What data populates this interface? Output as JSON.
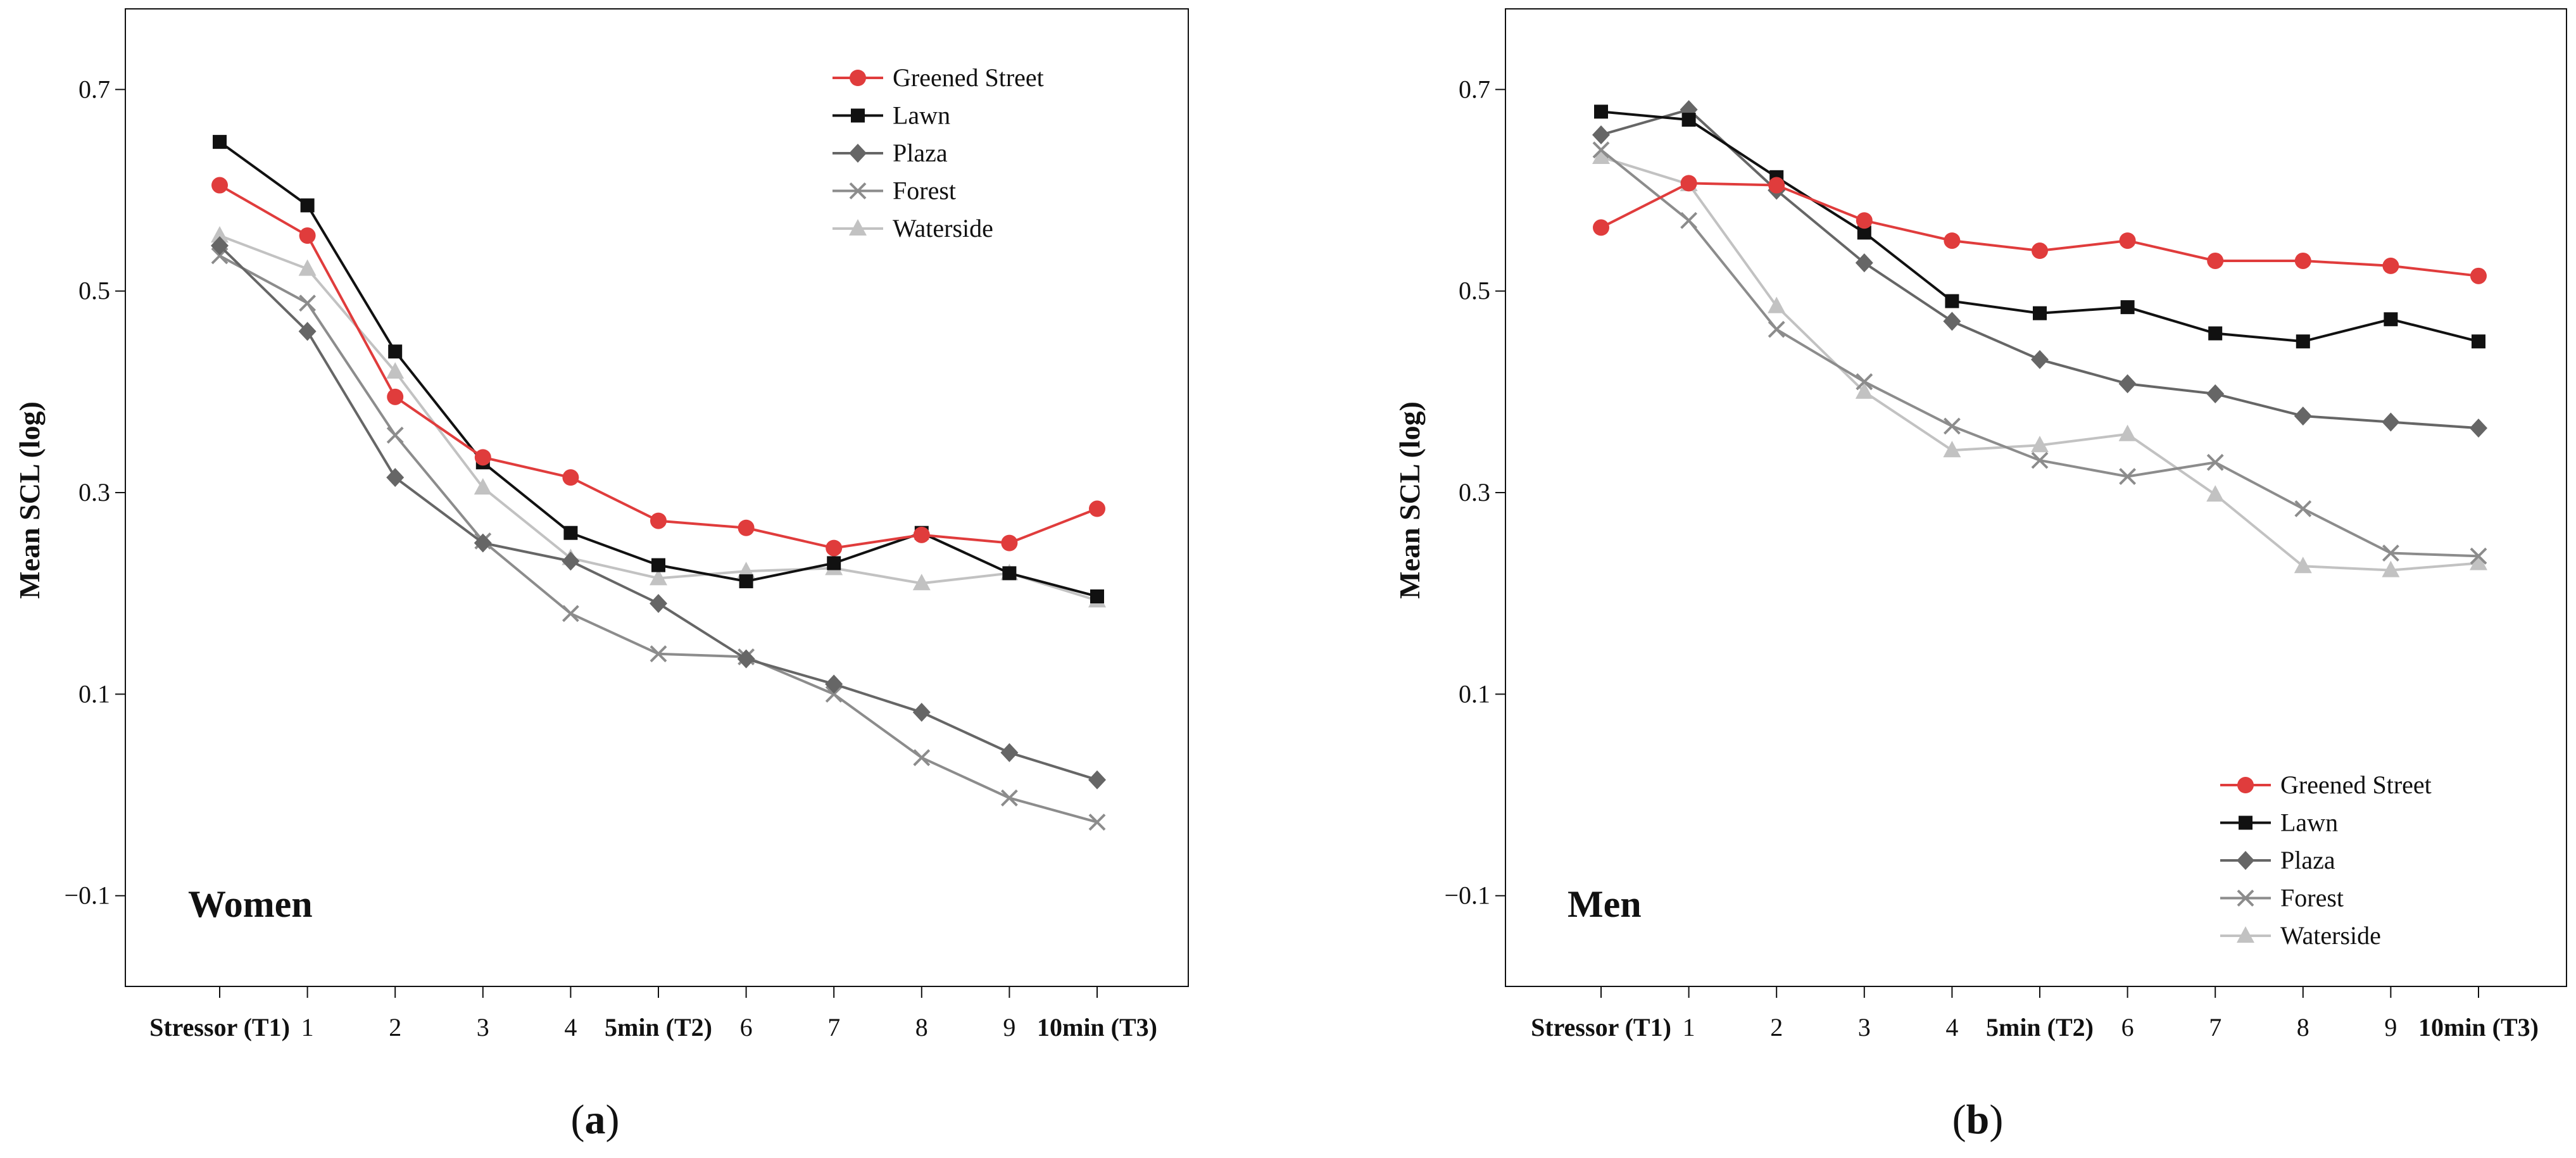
{
  "chart_data": [
    {
      "type": "line",
      "panel": "a",
      "caption_label": "a",
      "panel_label": "Women",
      "ylabel": "Mean SCL (log)",
      "xlabel": "",
      "ylim": [
        -0.19,
        0.78
      ],
      "yticks": [
        -0.1,
        0.1,
        0.3,
        0.5,
        0.7
      ],
      "ytick_labels": [
        "−0.1",
        "0.1",
        "0.3",
        "0.5",
        "0.7"
      ],
      "x": [
        0,
        1,
        2,
        3,
        4,
        5,
        6,
        7,
        8,
        9,
        10
      ],
      "xtick_labels": [
        "Stressor (T1)",
        "1",
        "2",
        "3",
        "4",
        "5min (T2)",
        "6",
        "7",
        "8",
        "9",
        "10min (T3)"
      ],
      "bold_xticks": [
        0,
        5,
        10
      ],
      "legend_position": "top-right",
      "series": [
        {
          "name": "Greened Street",
          "color": "#e03c3c",
          "marker": "circle",
          "values": [
            0.605,
            0.555,
            0.395,
            0.335,
            0.315,
            0.272,
            0.265,
            0.245,
            0.258,
            0.25,
            0.284
          ]
        },
        {
          "name": "Lawn",
          "color": "#111111",
          "marker": "square",
          "values": [
            0.648,
            0.585,
            0.44,
            0.33,
            0.26,
            0.228,
            0.212,
            0.23,
            0.26,
            0.22,
            0.197
          ]
        },
        {
          "name": "Plaza",
          "color": "#666666",
          "marker": "diamond",
          "values": [
            0.545,
            0.46,
            0.315,
            0.25,
            0.232,
            0.19,
            0.135,
            0.11,
            0.082,
            0.042,
            0.015
          ]
        },
        {
          "name": "Forest",
          "color": "#8c8c8c",
          "marker": "x",
          "values": [
            0.535,
            0.488,
            0.357,
            0.252,
            0.18,
            0.14,
            0.137,
            0.1,
            0.037,
            -0.003,
            -0.027
          ]
        },
        {
          "name": "Waterside",
          "color": "#c2c2c2",
          "marker": "triangle",
          "values": [
            0.555,
            0.522,
            0.42,
            0.305,
            0.235,
            0.215,
            0.222,
            0.225,
            0.21,
            0.22,
            0.193
          ]
        }
      ]
    },
    {
      "type": "line",
      "panel": "b",
      "caption_label": "b",
      "panel_label": "Men",
      "ylabel": "Mean SCL (log)",
      "xlabel": "",
      "ylim": [
        -0.19,
        0.78
      ],
      "yticks": [
        -0.1,
        0.1,
        0.3,
        0.5,
        0.7
      ],
      "ytick_labels": [
        "−0.1",
        "0.1",
        "0.3",
        "0.5",
        "0.7"
      ],
      "x": [
        0,
        1,
        2,
        3,
        4,
        5,
        6,
        7,
        8,
        9,
        10
      ],
      "xtick_labels": [
        "Stressor (T1)",
        "1",
        "2",
        "3",
        "4",
        "5min (T2)",
        "6",
        "7",
        "8",
        "9",
        "10min (T3)"
      ],
      "bold_xticks": [
        0,
        5,
        10
      ],
      "legend_position": "bottom-right",
      "series": [
        {
          "name": "Greened Street",
          "color": "#e03c3c",
          "marker": "circle",
          "values": [
            0.563,
            0.607,
            0.605,
            0.57,
            0.55,
            0.54,
            0.55,
            0.53,
            0.53,
            0.525,
            0.515
          ]
        },
        {
          "name": "Lawn",
          "color": "#111111",
          "marker": "square",
          "values": [
            0.678,
            0.67,
            0.613,
            0.558,
            0.49,
            0.478,
            0.484,
            0.458,
            0.45,
            0.472,
            0.45
          ]
        },
        {
          "name": "Plaza",
          "color": "#666666",
          "marker": "diamond",
          "values": [
            0.655,
            0.68,
            0.6,
            0.528,
            0.47,
            0.432,
            0.408,
            0.398,
            0.376,
            0.37,
            0.364
          ]
        },
        {
          "name": "Forest",
          "color": "#8c8c8c",
          "marker": "x",
          "values": [
            0.64,
            0.57,
            0.462,
            0.41,
            0.366,
            0.332,
            0.316,
            0.33,
            0.284,
            0.24,
            0.237
          ]
        },
        {
          "name": "Waterside",
          "color": "#c2c2c2",
          "marker": "triangle",
          "values": [
            0.633,
            0.606,
            0.485,
            0.4,
            0.342,
            0.347,
            0.358,
            0.298,
            0.227,
            0.223,
            0.23
          ]
        }
      ]
    }
  ]
}
